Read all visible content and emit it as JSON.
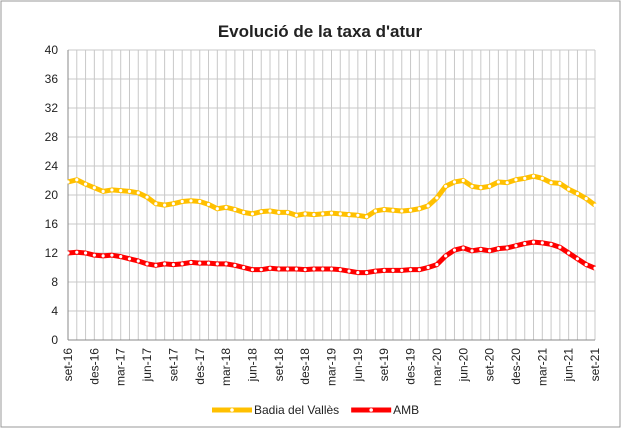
{
  "chart_data": {
    "type": "line",
    "title": "Evolució de la taxa d'atur",
    "categories": [
      "set-16",
      null,
      null,
      "des-16",
      null,
      null,
      "mar-17",
      null,
      null,
      "jun-17",
      null,
      null,
      "set-17",
      null,
      null,
      "des-17",
      null,
      null,
      "mar-18",
      null,
      null,
      "jun-18",
      null,
      null,
      "set-18",
      null,
      null,
      "des-18",
      null,
      null,
      "mar-19",
      null,
      null,
      "jun-19",
      null,
      null,
      "set-19",
      null,
      null,
      "des-19",
      null,
      null,
      "mar-20",
      null,
      null,
      "jun-20",
      null,
      null,
      "set-20",
      null,
      null,
      "des-20",
      null,
      null,
      "mar-21",
      null,
      null,
      "jun-21",
      null,
      null,
      "set-21"
    ],
    "series": [
      {
        "name": "Badia del Vallès",
        "color": "#ffc000",
        "values": [
          21.8,
          22.1,
          21.5,
          21.0,
          20.5,
          20.7,
          20.6,
          20.5,
          20.3,
          19.7,
          18.8,
          18.6,
          18.8,
          19.1,
          19.2,
          19.1,
          18.7,
          18.1,
          18.3,
          18.0,
          17.6,
          17.4,
          17.7,
          17.8,
          17.6,
          17.6,
          17.2,
          17.4,
          17.3,
          17.4,
          17.5,
          17.4,
          17.3,
          17.2,
          17.0,
          17.8,
          18.0,
          17.9,
          17.8,
          17.9,
          18.1,
          18.5,
          19.6,
          21.2,
          21.8,
          22.0,
          21.2,
          21.0,
          21.2,
          21.8,
          21.7,
          22.1,
          22.3,
          22.6,
          22.3,
          21.7,
          21.6,
          20.8,
          20.2,
          19.5,
          18.6
        ]
      },
      {
        "name": "AMB",
        "color": "#ff0000",
        "values": [
          12.0,
          12.1,
          12.0,
          11.7,
          11.6,
          11.7,
          11.5,
          11.2,
          10.9,
          10.5,
          10.3,
          10.5,
          10.4,
          10.5,
          10.7,
          10.6,
          10.6,
          10.5,
          10.5,
          10.3,
          10.0,
          9.7,
          9.7,
          9.9,
          9.8,
          9.8,
          9.8,
          9.7,
          9.8,
          9.8,
          9.8,
          9.7,
          9.5,
          9.3,
          9.3,
          9.5,
          9.6,
          9.6,
          9.6,
          9.7,
          9.7,
          10.0,
          10.4,
          11.6,
          12.4,
          12.7,
          12.3,
          12.5,
          12.3,
          12.6,
          12.7,
          13.0,
          13.3,
          13.5,
          13.4,
          13.2,
          12.8,
          12.0,
          11.2,
          10.4,
          9.9
        ]
      }
    ],
    "ylim": [
      0,
      40
    ],
    "yticks": [
      0,
      4,
      8,
      12,
      16,
      20,
      24,
      28,
      32,
      36,
      40
    ],
    "grid": true,
    "legend": "bottom"
  }
}
